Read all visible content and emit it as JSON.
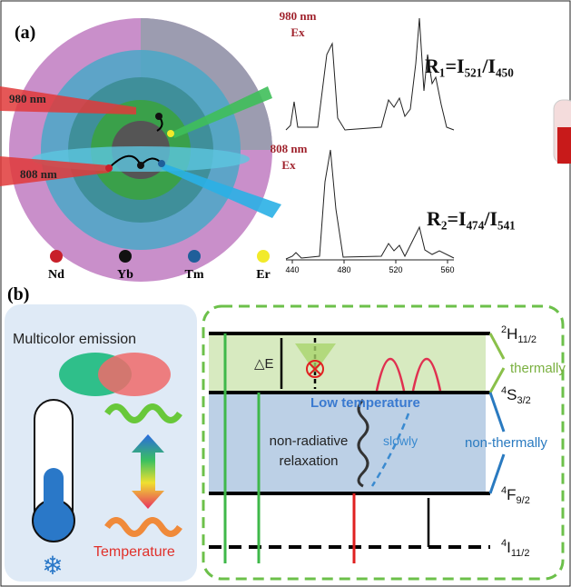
{
  "panel_a": {
    "label": "(a)",
    "excitations": [
      "980 nm",
      "808 nm"
    ],
    "spectra": [
      {
        "excitation": [
          "980 nm",
          "Ex"
        ],
        "ratio": "R₁=I₅₂₁/I₄₅₀"
      },
      {
        "excitation": [
          "808 nm",
          "Ex"
        ],
        "ratio": "R₂=I₄₇₄/I₅₄₁"
      }
    ],
    "x_ticks": [
      "440",
      "480",
      "520",
      "560"
    ],
    "ions": [
      {
        "name": "Nd",
        "color": "#c8202a"
      },
      {
        "name": "Yb",
        "color": "#111111"
      },
      {
        "name": "Tm",
        "color": "#1f5f9a"
      },
      {
        "name": "Er",
        "color": "#f2ea2a"
      }
    ]
  },
  "panel_b": {
    "label": "(b)",
    "multicolor": "Multicolor emission",
    "temperature": "Temperature",
    "delta_e": "△E",
    "low_temperature": "Low temperature",
    "relaxation": [
      "non-radiative",
      "relaxation"
    ],
    "slowly": "slowly",
    "thermally": "thermally",
    "non_thermally": "non-thermally",
    "levels": [
      {
        "sup": "2",
        "term": "H",
        "sub": "11/2"
      },
      {
        "sup": "4",
        "term": "S",
        "sub": "3/2"
      },
      {
        "sup": "4",
        "term": "F",
        "sub": "9/2"
      },
      {
        "sup": "4",
        "term": "I",
        "sub": "11/2"
      }
    ]
  }
}
